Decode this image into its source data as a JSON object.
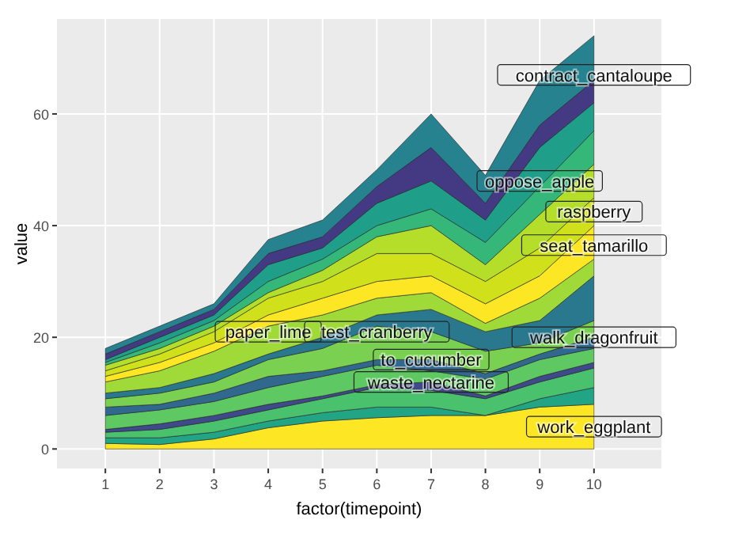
{
  "chart_data": {
    "type": "area",
    "stacked": true,
    "xlabel": "factor(timepoint)",
    "ylabel": "value",
    "categories": [
      "1",
      "2",
      "3",
      "4",
      "5",
      "6",
      "7",
      "8",
      "9",
      "10"
    ],
    "ylim": [
      -3.5,
      77
    ],
    "yticks": [
      0,
      20,
      40,
      60
    ],
    "grid": true,
    "series": [
      {
        "color": "#fde725",
        "values": [
          1,
          0.8,
          1.8,
          3.8,
          5,
          5.6,
          6,
          6,
          7.5,
          8
        ]
      },
      {
        "color": "#21a585",
        "values": [
          1,
          1.2,
          1.2,
          1.2,
          1.5,
          1.9,
          1.5,
          0,
          1.5,
          3
        ]
      },
      {
        "color": "#4ac16d",
        "values": [
          1,
          1.5,
          2,
          2,
          2.5,
          3.5,
          3,
          3,
          3,
          3.5
        ]
      },
      {
        "color": "#3e4a89",
        "values": [
          0.5,
          1,
          1,
          1,
          0.5,
          0.5,
          1.5,
          0.5,
          1,
          1
        ]
      },
      {
        "color": "#5ec962",
        "values": [
          2.5,
          2.5,
          2.5,
          3,
          3.5,
          3.5,
          2,
          3,
          3,
          2.5
        ]
      },
      {
        "color": "#31688e",
        "values": [
          1.5,
          1,
          1.5,
          2,
          1,
          1,
          2,
          1,
          1,
          2
        ]
      },
      {
        "color": "#7ad151",
        "values": [
          1.5,
          2,
          2,
          3,
          4,
          6,
          5,
          4,
          2,
          3
        ]
      },
      {
        "color": "#2a788e",
        "values": [
          1,
          1,
          1.5,
          1,
          2,
          2,
          4,
          3.5,
          4,
          8
        ]
      },
      {
        "color": "#a0da39",
        "values": [
          2,
          3,
          4,
          5,
          4,
          3,
          3,
          1.5,
          4,
          3
        ]
      },
      {
        "color": "#fde725",
        "values": [
          1,
          1.5,
          1.5,
          2,
          3,
          3,
          3,
          3.5,
          4,
          6
        ]
      },
      {
        "color": "#d0e11c",
        "values": [
          1,
          1.5,
          2,
          3,
          3,
          5,
          4,
          4,
          5,
          5
        ]
      },
      {
        "color": "#b5de2b",
        "values": [
          1,
          1,
          1,
          1,
          2,
          3,
          5,
          3,
          6,
          6
        ]
      },
      {
        "color": "#35b779",
        "values": [
          0.5,
          1,
          1,
          2,
          2,
          2,
          3,
          4,
          5,
          6
        ]
      },
      {
        "color": "#1f9e89",
        "values": [
          0.5,
          1,
          1,
          3,
          2,
          4,
          5,
          4,
          7,
          5
        ]
      },
      {
        "color": "#443983",
        "values": [
          1,
          1,
          1,
          2,
          2,
          3,
          6,
          3,
          4,
          4
        ]
      },
      {
        "color": "#26828e",
        "values": [
          1,
          1,
          1,
          2.5,
          3,
          3,
          6,
          5,
          8,
          8
        ]
      }
    ],
    "annotations": [
      {
        "text": "paper_lime",
        "x": "4",
        "y": 21
      },
      {
        "text": "test_cranberry",
        "x": "6",
        "y": 21
      },
      {
        "text": "to_cucumber",
        "x": "7",
        "y": 16
      },
      {
        "text": "waste_nectarine",
        "x": "7",
        "y": 12
      },
      {
        "text": "oppose_apple",
        "x": "9",
        "y": 48
      },
      {
        "text": "raspberry",
        "x": "10",
        "y": 42.5
      },
      {
        "text": "seat_tamarillo",
        "x": "10",
        "y": 36.5
      },
      {
        "text": "walk_dragonfruit",
        "x": "10",
        "y": 20
      },
      {
        "text": "work_eggplant",
        "x": "10",
        "y": 4
      },
      {
        "text": "contract_cantaloupe",
        "x": "10",
        "y": 67
      }
    ]
  }
}
